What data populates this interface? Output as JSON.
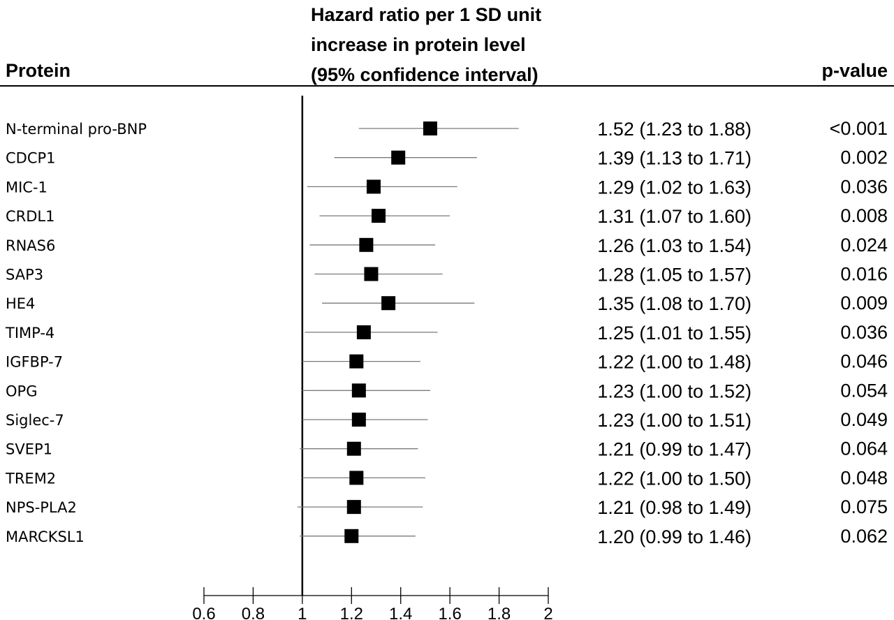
{
  "header": {
    "protein": "Protein",
    "hr_line1": "Hazard ratio per 1 SD unit",
    "hr_line2": "increase in protein level",
    "hr_line3": "(95% confidence interval)",
    "pvalue": "p-value"
  },
  "chart_data": {
    "type": "forest",
    "title": "",
    "xlabel": "",
    "xlim": [
      0.6,
      2.0
    ],
    "xticks": [
      "0.6",
      "0.8",
      "1",
      "1.2",
      "1.4",
      "1.6",
      "1.8",
      "2"
    ],
    "reference_line": 1,
    "rows": [
      {
        "protein": "N-terminal pro-BNP",
        "hr": 1.52,
        "lo": 1.23,
        "hi": 1.88,
        "label": "1.52 (1.23 to 1.88)",
        "p": "<0.001"
      },
      {
        "protein": "CDCP1",
        "hr": 1.39,
        "lo": 1.13,
        "hi": 1.71,
        "label": "1.39 (1.13 to 1.71)",
        "p": "0.002"
      },
      {
        "protein": "MIC-1",
        "hr": 1.29,
        "lo": 1.02,
        "hi": 1.63,
        "label": "1.29 (1.02 to 1.63)",
        "p": "0.036"
      },
      {
        "protein": "CRDL1",
        "hr": 1.31,
        "lo": 1.07,
        "hi": 1.6,
        "label": "1.31 (1.07 to 1.60)",
        "p": "0.008"
      },
      {
        "protein": "RNAS6",
        "hr": 1.26,
        "lo": 1.03,
        "hi": 1.54,
        "label": "1.26 (1.03 to 1.54)",
        "p": "0.024"
      },
      {
        "protein": "SAP3",
        "hr": 1.28,
        "lo": 1.05,
        "hi": 1.57,
        "label": "1.28 (1.05 to 1.57)",
        "p": "0.016"
      },
      {
        "protein": "HE4",
        "hr": 1.35,
        "lo": 1.08,
        "hi": 1.7,
        "label": "1.35 (1.08 to 1.70)",
        "p": "0.009"
      },
      {
        "protein": "TIMP-4",
        "hr": 1.25,
        "lo": 1.01,
        "hi": 1.55,
        "label": "1.25 (1.01 to 1.55)",
        "p": "0.036"
      },
      {
        "protein": "IGFBP-7",
        "hr": 1.22,
        "lo": 1.0,
        "hi": 1.48,
        "label": "1.22 (1.00 to 1.48)",
        "p": "0.046"
      },
      {
        "protein": "OPG",
        "hr": 1.23,
        "lo": 1.0,
        "hi": 1.52,
        "label": "1.23 (1.00 to 1.52)",
        "p": "0.054"
      },
      {
        "protein": "Siglec-7",
        "hr": 1.23,
        "lo": 1.0,
        "hi": 1.51,
        "label": "1.23 (1.00 to 1.51)",
        "p": "0.049"
      },
      {
        "protein": "SVEP1",
        "hr": 1.21,
        "lo": 0.99,
        "hi": 1.47,
        "label": "1.21 (0.99 to 1.47)",
        "p": "0.064"
      },
      {
        "protein": "TREM2",
        "hr": 1.22,
        "lo": 1.0,
        "hi": 1.5,
        "label": "1.22 (1.00 to 1.50)",
        "p": "0.048"
      },
      {
        "protein": "NPS-PLA2",
        "hr": 1.21,
        "lo": 0.98,
        "hi": 1.49,
        "label": "1.21 (0.98 to 1.49)",
        "p": "0.075"
      },
      {
        "protein": "MARCKSL1",
        "hr": 1.2,
        "lo": 0.99,
        "hi": 1.46,
        "label": "1.20 (0.99 to 1.46)",
        "p": "0.062"
      }
    ]
  }
}
